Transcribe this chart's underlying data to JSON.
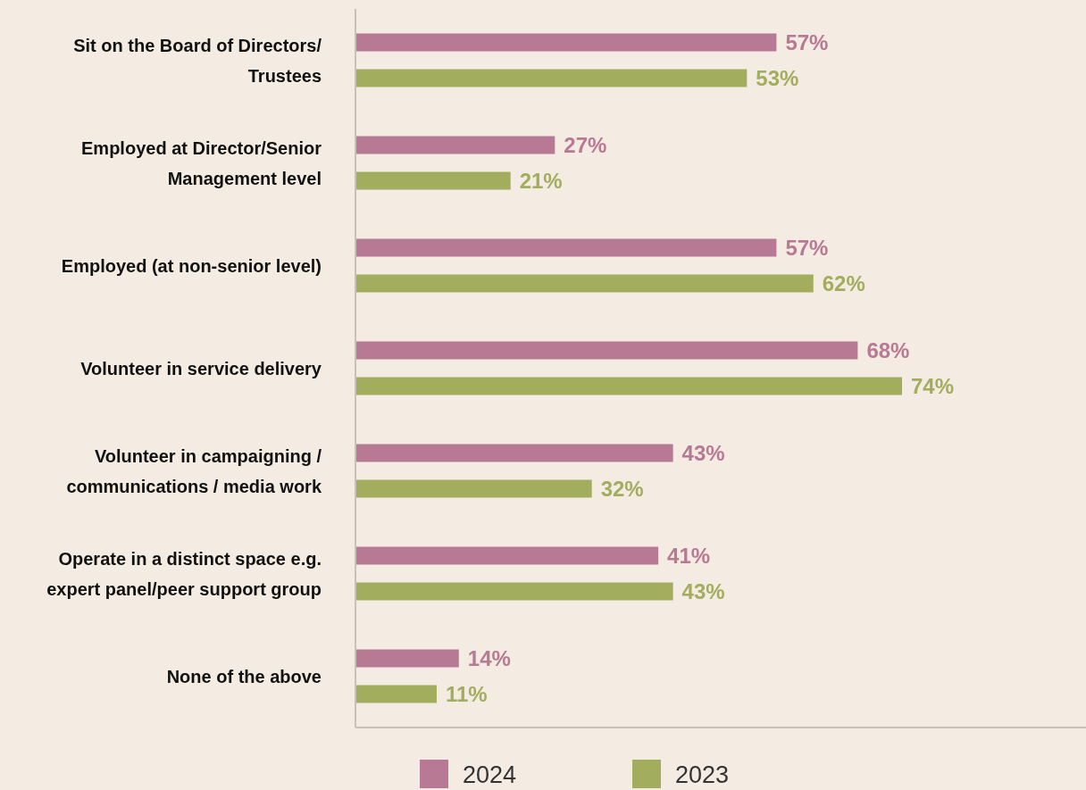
{
  "chart_data": {
    "type": "bar",
    "orientation": "horizontal",
    "legend": "bottom",
    "categories": [
      "Sit on the Board of Directors/ Trustees",
      "Employed at Director/Senior Management level",
      "Employed (at non-senior level)",
      "Volunteer in service delivery",
      "Volunteer in campaigning / communications / media work",
      "Operate in a distinct space e.g. expert panel/peer support group",
      "None of the above"
    ],
    "series": [
      {
        "name": "2024",
        "color": "#b87994",
        "values": [
          57,
          27,
          57,
          68,
          43,
          41,
          14
        ],
        "value_labels": [
          "57%",
          "27%",
          "57%",
          "68%",
          "43%",
          "41%",
          "14%"
        ]
      },
      {
        "name": "2023",
        "color": "#a3ad5e",
        "values": [
          53,
          21,
          62,
          74,
          32,
          43,
          11
        ],
        "value_labels": [
          "53%",
          "21%",
          "62%",
          "74%",
          "32%",
          "43%",
          "11%"
        ]
      }
    ]
  }
}
